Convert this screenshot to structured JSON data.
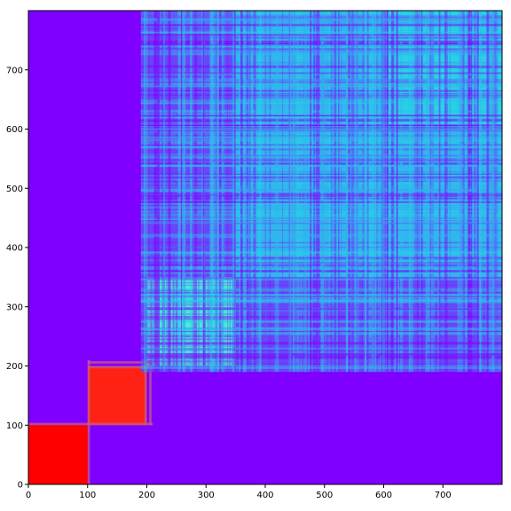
{
  "chart_data": {
    "type": "heatmap",
    "title": "",
    "xlabel": "",
    "ylabel": "",
    "xlim": [
      0,
      800
    ],
    "ylim": [
      0,
      800
    ],
    "x_ticks": [
      0,
      100,
      200,
      300,
      400,
      500,
      600,
      700
    ],
    "y_ticks": [
      0,
      100,
      200,
      300,
      400,
      500,
      600,
      700
    ],
    "colormap": "rainbow",
    "grid": false,
    "colors": {
      "background": "#7f00ff",
      "block_red": "#ff0000",
      "block_red_orange": "#ff2214",
      "block_edge": "#c85a87",
      "mid_blue": "#6a46fb",
      "light_blue": "#31b6ee",
      "cyan": "#28d2e6",
      "aqua": "#4ee9d7"
    },
    "blocks": [
      {
        "x0": 0,
        "x1": 100,
        "y0": 0,
        "y1": 100,
        "color": "block_red"
      },
      {
        "x0": 100,
        "x1": 200,
        "y0": 100,
        "y1": 200,
        "color": "block_red_orange"
      },
      {
        "x0": 190,
        "x1": 800,
        "y0": 190,
        "y1": 800,
        "color": "mid_blue"
      },
      {
        "x0": 350,
        "x1": 800,
        "y0": 350,
        "y1": 800,
        "color": "light_blue"
      },
      {
        "x0": 200,
        "x1": 350,
        "y0": 200,
        "y1": 350,
        "color": "aqua"
      },
      {
        "x0": 600,
        "x1": 800,
        "y0": 600,
        "y1": 800,
        "color": "cyan"
      }
    ]
  }
}
